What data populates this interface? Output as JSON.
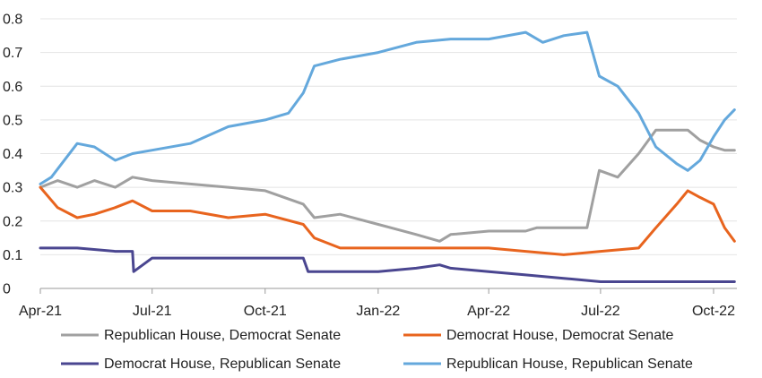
{
  "chart_data": {
    "type": "line",
    "x_ticks": [
      "Apr-21",
      "Jul-21",
      "Oct-21",
      "Jan-22",
      "Apr-22",
      "Jul-22",
      "Oct-22"
    ],
    "y_ticks": [
      "0",
      "0.1",
      "0.2",
      "0.3",
      "0.4",
      "0.5",
      "0.6",
      "0.7",
      "0.8"
    ],
    "xlim": [
      "2021-04-01",
      "2022-10-20"
    ],
    "ylim": [
      0,
      0.8
    ],
    "grid": "horizontal",
    "legend_position": "bottom",
    "series": [
      {
        "name": "Republican House, Democrat Senate",
        "color": "#a0a0a0",
        "points": [
          [
            "2021-04-01",
            0.3
          ],
          [
            "2021-04-15",
            0.32
          ],
          [
            "2021-05-01",
            0.3
          ],
          [
            "2021-05-15",
            0.32
          ],
          [
            "2021-06-01",
            0.3
          ],
          [
            "2021-06-15",
            0.33
          ],
          [
            "2021-07-01",
            0.32
          ],
          [
            "2021-08-01",
            0.31
          ],
          [
            "2021-09-01",
            0.3
          ],
          [
            "2021-10-01",
            0.29
          ],
          [
            "2021-11-01",
            0.25
          ],
          [
            "2021-11-10",
            0.21
          ],
          [
            "2021-12-01",
            0.22
          ],
          [
            "2022-01-01",
            0.19
          ],
          [
            "2022-02-01",
            0.16
          ],
          [
            "2022-02-20",
            0.14
          ],
          [
            "2022-03-01",
            0.16
          ],
          [
            "2022-04-01",
            0.17
          ],
          [
            "2022-05-01",
            0.17
          ],
          [
            "2022-05-10",
            0.18
          ],
          [
            "2022-06-01",
            0.18
          ],
          [
            "2022-06-20",
            0.18
          ],
          [
            "2022-06-30",
            0.35
          ],
          [
            "2022-07-15",
            0.33
          ],
          [
            "2022-08-01",
            0.4
          ],
          [
            "2022-08-15",
            0.47
          ],
          [
            "2022-09-01",
            0.47
          ],
          [
            "2022-09-10",
            0.47
          ],
          [
            "2022-09-20",
            0.44
          ],
          [
            "2022-10-01",
            0.42
          ],
          [
            "2022-10-10",
            0.41
          ],
          [
            "2022-10-18",
            0.41
          ]
        ]
      },
      {
        "name": "Democrat House, Democrat Senate",
        "color": "#e8641e",
        "points": [
          [
            "2021-04-01",
            0.3
          ],
          [
            "2021-04-15",
            0.24
          ],
          [
            "2021-05-01",
            0.21
          ],
          [
            "2021-05-15",
            0.22
          ],
          [
            "2021-06-01",
            0.24
          ],
          [
            "2021-06-15",
            0.26
          ],
          [
            "2021-07-01",
            0.23
          ],
          [
            "2021-08-01",
            0.23
          ],
          [
            "2021-09-01",
            0.21
          ],
          [
            "2021-10-01",
            0.22
          ],
          [
            "2021-11-01",
            0.19
          ],
          [
            "2021-11-10",
            0.15
          ],
          [
            "2021-12-01",
            0.12
          ],
          [
            "2022-01-01",
            0.12
          ],
          [
            "2022-02-01",
            0.12
          ],
          [
            "2022-03-01",
            0.12
          ],
          [
            "2022-04-01",
            0.12
          ],
          [
            "2022-05-01",
            0.11
          ],
          [
            "2022-06-01",
            0.1
          ],
          [
            "2022-07-01",
            0.11
          ],
          [
            "2022-08-01",
            0.12
          ],
          [
            "2022-08-15",
            0.18
          ],
          [
            "2022-09-01",
            0.25
          ],
          [
            "2022-09-10",
            0.29
          ],
          [
            "2022-09-20",
            0.27
          ],
          [
            "2022-10-01",
            0.25
          ],
          [
            "2022-10-10",
            0.18
          ],
          [
            "2022-10-18",
            0.14
          ]
        ]
      },
      {
        "name": "Democrat House, Republican Senate",
        "color": "#4a4690",
        "points": [
          [
            "2021-04-01",
            0.12
          ],
          [
            "2021-05-01",
            0.12
          ],
          [
            "2021-06-01",
            0.11
          ],
          [
            "2021-06-15",
            0.11
          ],
          [
            "2021-06-16",
            0.05
          ],
          [
            "2021-07-01",
            0.09
          ],
          [
            "2021-08-01",
            0.09
          ],
          [
            "2021-09-01",
            0.09
          ],
          [
            "2021-10-01",
            0.09
          ],
          [
            "2021-11-01",
            0.09
          ],
          [
            "2021-11-05",
            0.05
          ],
          [
            "2021-12-01",
            0.05
          ],
          [
            "2022-01-01",
            0.05
          ],
          [
            "2022-02-01",
            0.06
          ],
          [
            "2022-02-20",
            0.07
          ],
          [
            "2022-03-01",
            0.06
          ],
          [
            "2022-04-01",
            0.05
          ],
          [
            "2022-05-01",
            0.04
          ],
          [
            "2022-06-01",
            0.03
          ],
          [
            "2022-07-01",
            0.02
          ],
          [
            "2022-08-01",
            0.02
          ],
          [
            "2022-09-01",
            0.02
          ],
          [
            "2022-10-01",
            0.02
          ],
          [
            "2022-10-18",
            0.02
          ]
        ]
      },
      {
        "name": "Republican House, Republican Senate",
        "color": "#64a8dc",
        "points": [
          [
            "2021-04-01",
            0.31
          ],
          [
            "2021-04-10",
            0.33
          ],
          [
            "2021-05-01",
            0.43
          ],
          [
            "2021-05-15",
            0.42
          ],
          [
            "2021-06-01",
            0.38
          ],
          [
            "2021-06-15",
            0.4
          ],
          [
            "2021-07-01",
            0.41
          ],
          [
            "2021-08-01",
            0.43
          ],
          [
            "2021-09-01",
            0.48
          ],
          [
            "2021-10-01",
            0.5
          ],
          [
            "2021-10-20",
            0.52
          ],
          [
            "2021-11-01",
            0.58
          ],
          [
            "2021-11-10",
            0.66
          ],
          [
            "2021-12-01",
            0.68
          ],
          [
            "2022-01-01",
            0.7
          ],
          [
            "2022-02-01",
            0.73
          ],
          [
            "2022-03-01",
            0.74
          ],
          [
            "2022-04-01",
            0.74
          ],
          [
            "2022-05-01",
            0.76
          ],
          [
            "2022-05-15",
            0.73
          ],
          [
            "2022-06-01",
            0.75
          ],
          [
            "2022-06-20",
            0.76
          ],
          [
            "2022-06-30",
            0.63
          ],
          [
            "2022-07-15",
            0.6
          ],
          [
            "2022-08-01",
            0.52
          ],
          [
            "2022-08-15",
            0.42
          ],
          [
            "2022-09-01",
            0.37
          ],
          [
            "2022-09-10",
            0.35
          ],
          [
            "2022-09-20",
            0.38
          ],
          [
            "2022-10-01",
            0.45
          ],
          [
            "2022-10-10",
            0.5
          ],
          [
            "2022-10-18",
            0.53
          ]
        ]
      }
    ]
  }
}
